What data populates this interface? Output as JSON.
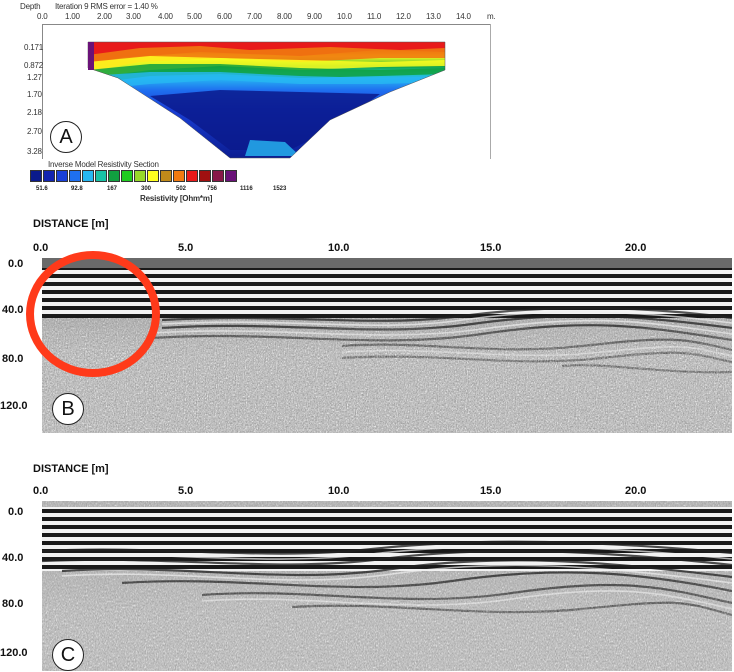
{
  "ert": {
    "depth_label": "Depth",
    "iteration_label": "Iteration 9 RMS error = 1.40 %",
    "unit_label": "m.",
    "x_ticks": [
      "0.0",
      "1.00",
      "2.00",
      "3.00",
      "4.00",
      "5.00",
      "6.00",
      "7.00",
      "8.00",
      "9.00",
      "10.0",
      "11.0",
      "12.0",
      "13.0",
      "14.0"
    ],
    "y_ticks": [
      "0.171",
      "0.872",
      "1.27",
      "1.70",
      "2.18",
      "2.70",
      "3.28"
    ],
    "section_title": "Inverse Model Resistivity Section",
    "legend_values": [
      "51.6",
      "92.8",
      "167",
      "300",
      "502",
      "756",
      "1116",
      "1523"
    ],
    "legend_colors": [
      "#0a1a8c",
      "#1224b0",
      "#1a40d8",
      "#1f70f0",
      "#27b8f2",
      "#19c2a6",
      "#11a040",
      "#1fcc1f",
      "#98d82a",
      "#ffff20",
      "#c08a1a",
      "#f07a10",
      "#e81a1a",
      "#a01010",
      "#881848",
      "#6a1278"
    ],
    "resistivity_label": "Resistivity [Ohm*m]",
    "badge": "A"
  },
  "gpr_b": {
    "axis_title": "DISTANCE [m]",
    "x_ticks": [
      "0.0",
      "5.0",
      "10.0",
      "15.0",
      "20.0"
    ],
    "y_ticks": [
      "0.0",
      "40.0",
      "80.0",
      "120.0"
    ],
    "badge": "B",
    "highlight_color": "#ff3a1a"
  },
  "gpr_c": {
    "axis_title": "DISTANCE [m]",
    "x_ticks": [
      "0.0",
      "5.0",
      "10.0",
      "15.0",
      "20.0"
    ],
    "y_ticks": [
      "0.0",
      "40.0",
      "80.0",
      "120.0"
    ],
    "badge": "C"
  }
}
